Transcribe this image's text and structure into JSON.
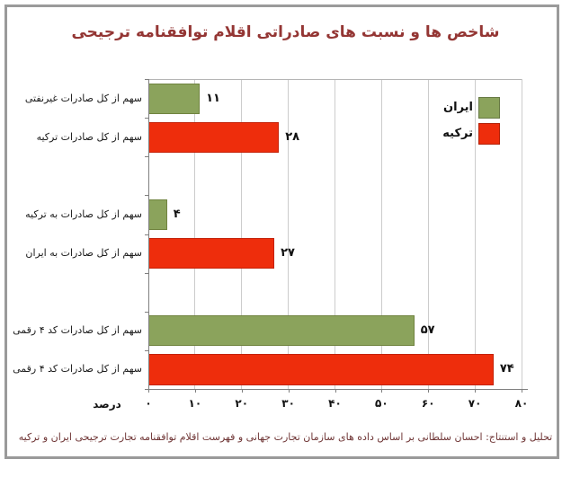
{
  "title": "شاخص ها و نسبت های صادراتی اقلام توافقنامه ترجیحی",
  "caption": "تحلیل و استنتاج: احسان سلطانی بر اساس داده های سازمان تجارت جهانی و فهرست اقلام توافقنامه تجارت ترجیحی ایران و ترکیه",
  "legend": {
    "items": [
      {
        "label": "ایران",
        "color": "#8ba35c"
      },
      {
        "label": "ترکیه",
        "color": "#ee2d0c"
      }
    ]
  },
  "axis": {
    "label": "درصد"
  },
  "chart_data": {
    "type": "bar",
    "orientation": "horizontal",
    "title": "شاخص ها و نسبت های صادراتی اقلام توافقنامه ترجیحی",
    "xlabel": "درصد",
    "xlim": [
      0,
      80
    ],
    "grid": true,
    "legend_position": "top-right",
    "x_ticks": [
      0,
      10,
      20,
      30,
      40,
      50,
      60,
      70,
      80
    ],
    "x_tick_labels": [
      "۰",
      "۱۰",
      "۲۰",
      "۳۰",
      "۴۰",
      "۵۰",
      "۶۰",
      "۷۰",
      "۸۰"
    ],
    "series_names": [
      "ایران",
      "ترکیه"
    ],
    "colors": {
      "ایران": "#8ba35c",
      "ترکیه": "#ee2d0c"
    },
    "bars": [
      {
        "category": "سهم از کل صادرات غیرنفتی",
        "series": "ایران",
        "value": 11,
        "value_label": "۱۱"
      },
      {
        "category": "سهم از کل صادرات ترکیه",
        "series": "ترکیه",
        "value": 28,
        "value_label": "۲۸"
      },
      {
        "category": "سهم از کل صادرات به ترکیه",
        "series": "ایران",
        "value": 4,
        "value_label": "۴"
      },
      {
        "category": "سهم از کل صادرات به ایران",
        "series": "ترکیه",
        "value": 27,
        "value_label": "۲۷"
      },
      {
        "category": "سهم از کل صادرات کد ۴ رقمی",
        "series": "ایران",
        "value": 57,
        "value_label": "۵۷"
      },
      {
        "category": "سهم از کل صادرات کد ۴ رقمی",
        "series": "ترکیه",
        "value": 74,
        "value_label": "۷۴"
      }
    ]
  }
}
